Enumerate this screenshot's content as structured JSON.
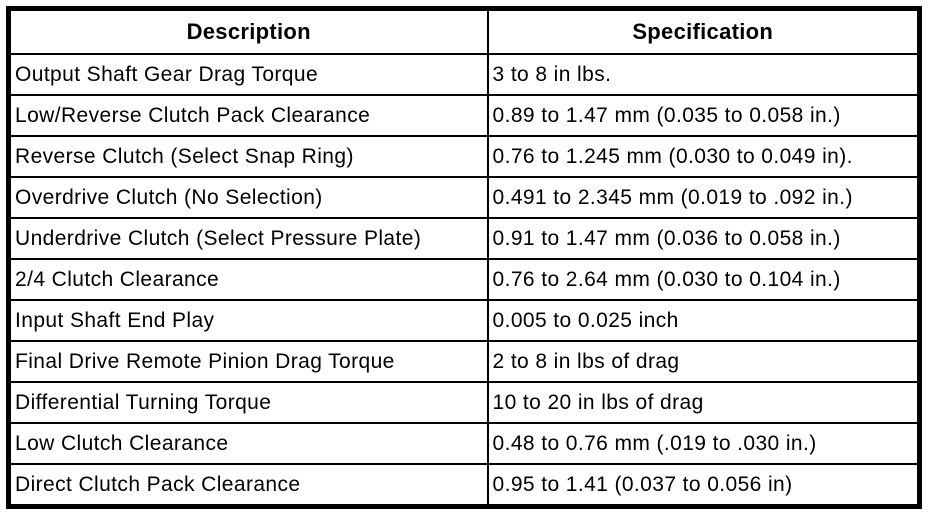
{
  "table": {
    "columns": [
      "Description",
      "Specification"
    ],
    "rows": [
      {
        "description": "Output Shaft Gear Drag Torque",
        "specification": "3 to 8 in lbs."
      },
      {
        "description": "Low/Reverse Clutch Pack Clearance",
        "specification": "0.89 to 1.47 mm (0.035 to 0.058 in.)"
      },
      {
        "description": "Reverse Clutch (Select Snap Ring)",
        "specification": "0.76 to 1.245 mm (0.030 to 0.049 in)."
      },
      {
        "description": "Overdrive Clutch (No Selection)",
        "specification": "0.491 to 2.345 mm (0.019 to .092 in.)"
      },
      {
        "description": "Underdrive Clutch (Select Pressure Plate)",
        "specification": "0.91 to 1.47 mm (0.036 to 0.058 in.)"
      },
      {
        "description": "2/4 Clutch Clearance",
        "specification": "0.76 to 2.64 mm (0.030 to 0.104 in.)"
      },
      {
        "description": "Input Shaft End Play",
        "specification": "0.005 to 0.025 inch"
      },
      {
        "description": "Final Drive Remote Pinion Drag Torque",
        "specification": "2 to 8 in lbs of drag"
      },
      {
        "description": "Differential Turning Torque",
        "specification": "10 to 20 in lbs of drag"
      },
      {
        "description": "Low Clutch Clearance",
        "specification": "0.48 to 0.76 mm (.019 to .030 in.)"
      },
      {
        "description": "Direct Clutch Pack Clearance",
        "specification": "0.95 to 1.41 (0.037 to 0.056 in)"
      }
    ]
  },
  "colors": {
    "border": "#000000",
    "background": "#ffffff",
    "text": "#000000"
  }
}
